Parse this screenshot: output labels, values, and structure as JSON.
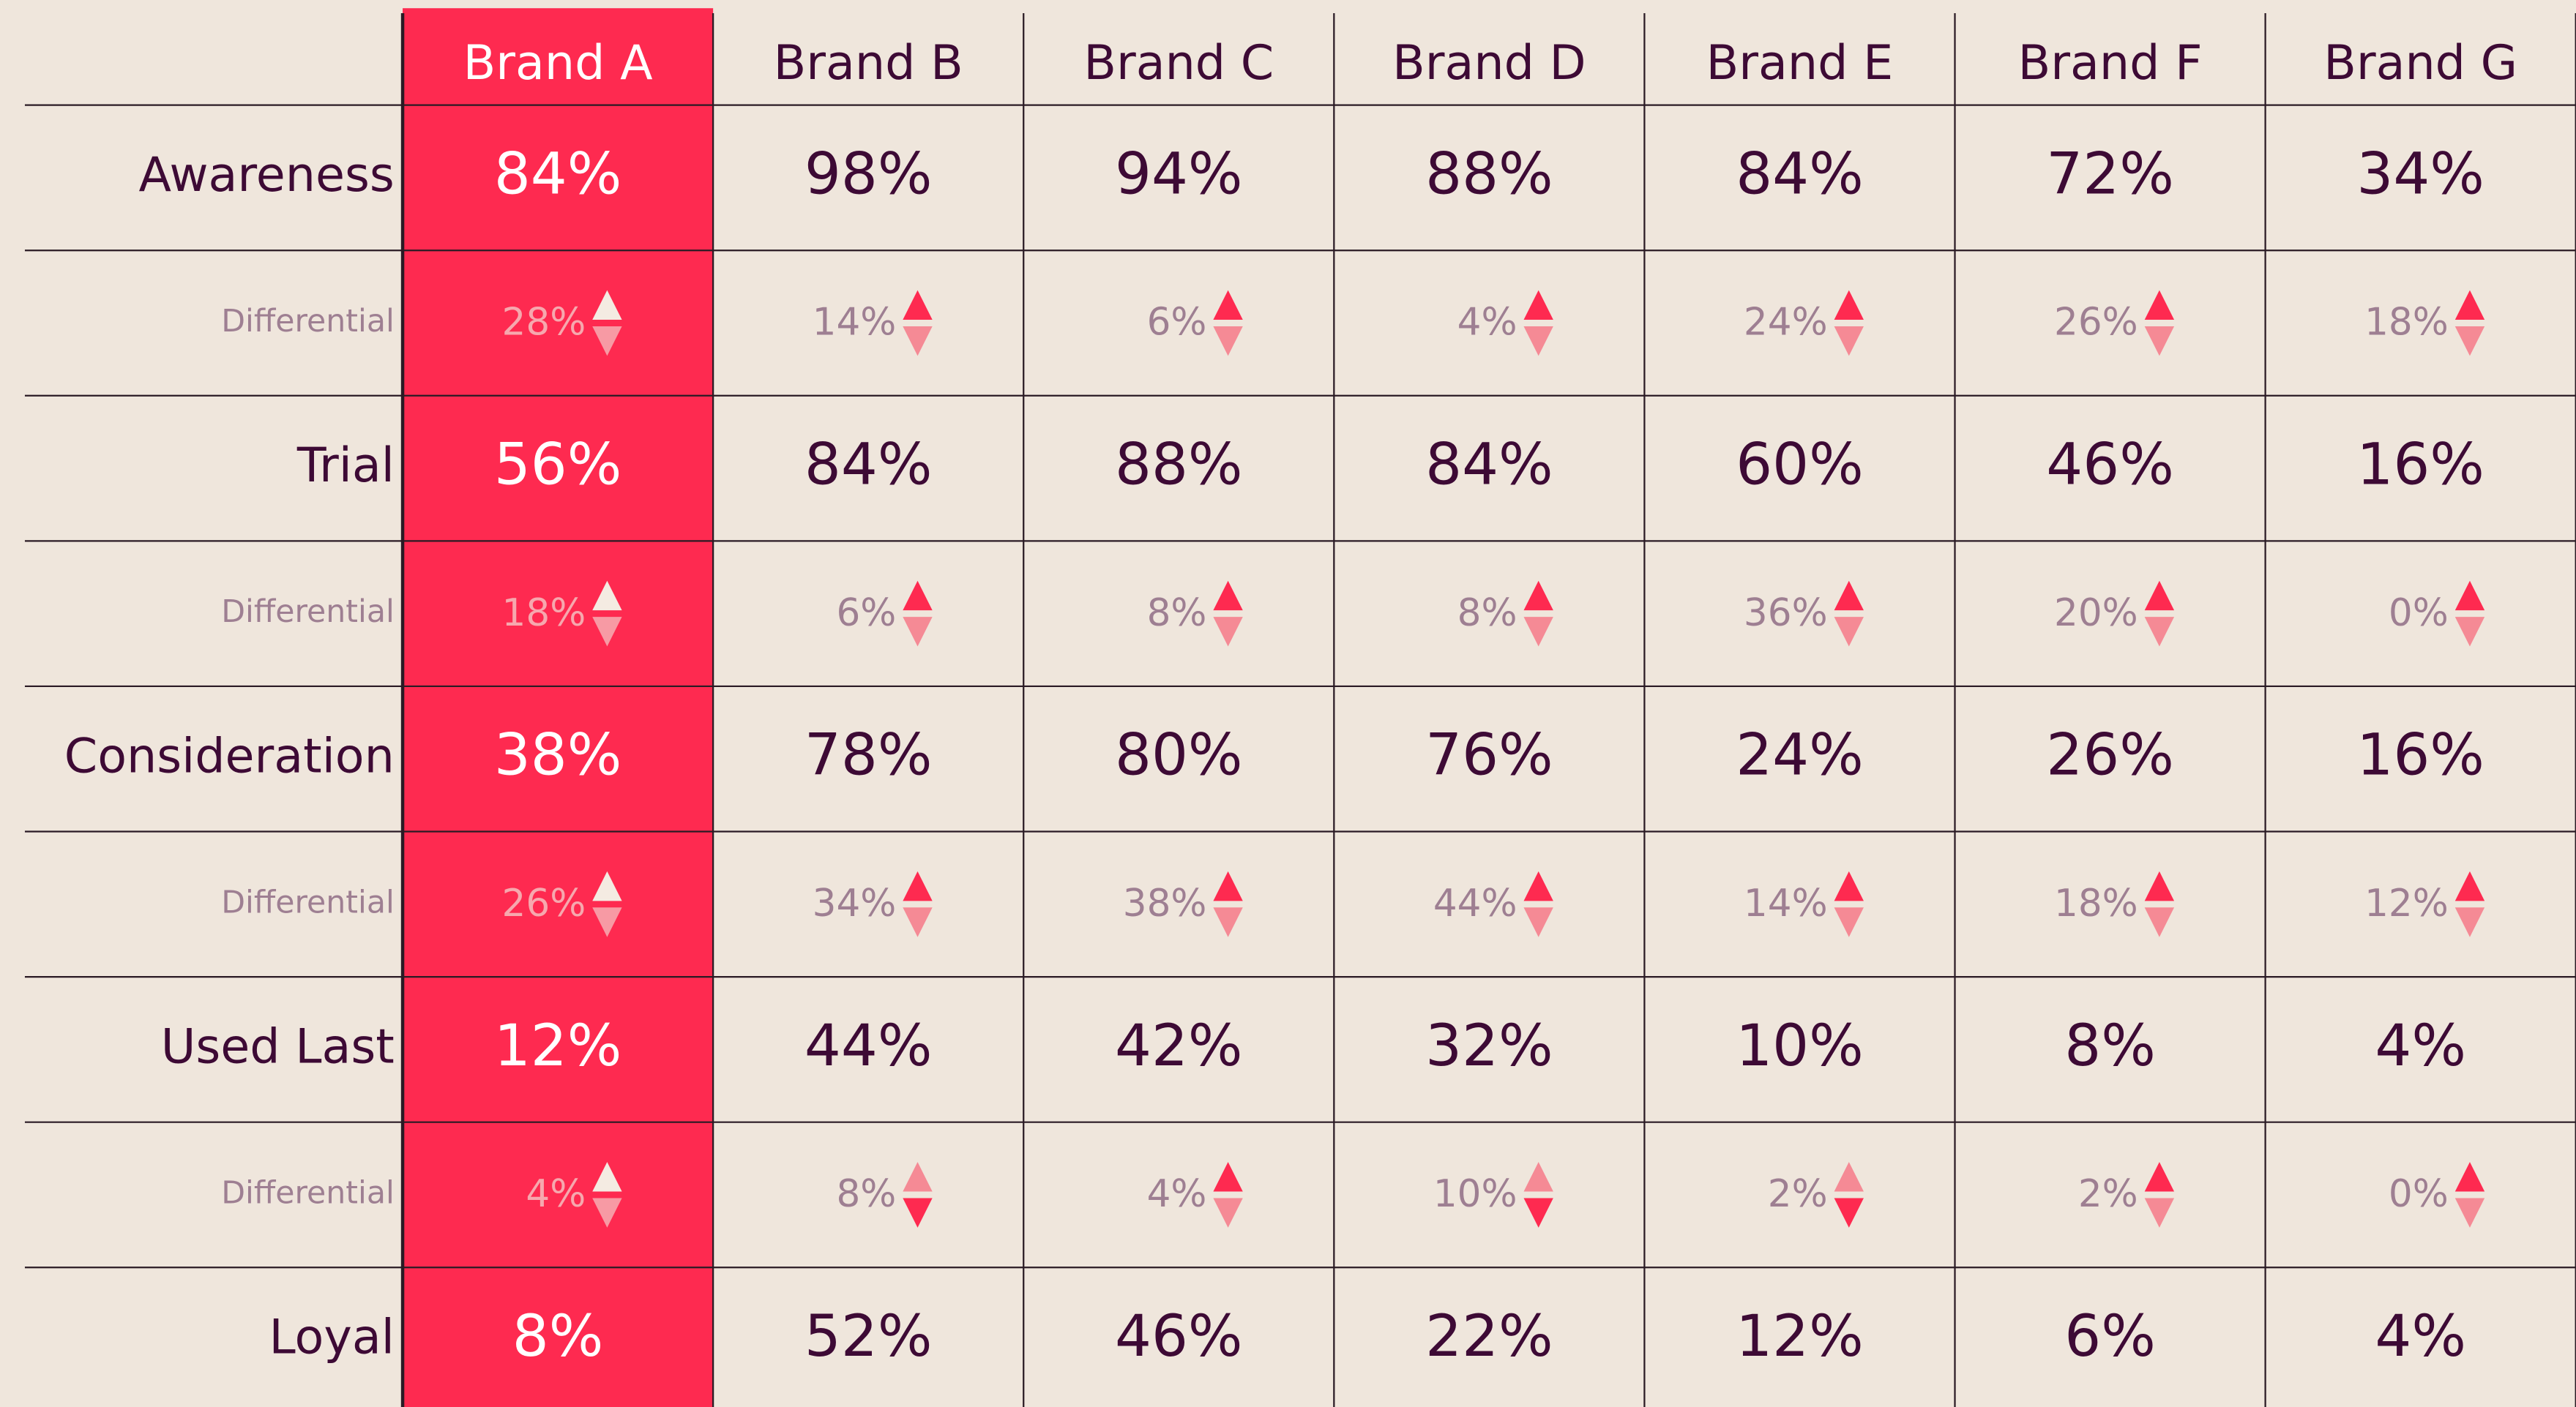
{
  "table": {
    "columns": [
      "Brand A",
      "Brand B",
      "Brand C",
      "Brand D",
      "Brand E",
      "Brand F",
      "Brand G"
    ],
    "highlight_column": 0,
    "rows": [
      {
        "label": "Awareness",
        "values": [
          "84%",
          "98%",
          "94%",
          "88%",
          "84%",
          "72%",
          "34%"
        ],
        "differential": {
          "label": "Differential",
          "values": [
            "28%",
            "14%",
            "6%",
            "4%",
            "24%",
            "26%",
            "18%"
          ],
          "directions": [
            "up",
            "up",
            "up",
            "up",
            "up",
            "up",
            "up"
          ]
        }
      },
      {
        "label": "Trial",
        "values": [
          "56%",
          "84%",
          "88%",
          "84%",
          "60%",
          "46%",
          "16%"
        ],
        "differential": {
          "label": "Differential",
          "values": [
            "18%",
            "6%",
            "8%",
            "8%",
            "36%",
            "20%",
            "0%"
          ],
          "directions": [
            "up",
            "up",
            "up",
            "up",
            "up",
            "up",
            "up"
          ]
        }
      },
      {
        "label": "Consideration",
        "values": [
          "38%",
          "78%",
          "80%",
          "76%",
          "24%",
          "26%",
          "16%"
        ],
        "differential": {
          "label": "Differential",
          "values": [
            "26%",
            "34%",
            "38%",
            "44%",
            "14%",
            "18%",
            "12%"
          ],
          "directions": [
            "up",
            "up",
            "up",
            "up",
            "up",
            "up",
            "up"
          ]
        }
      },
      {
        "label": "Used Last",
        "values": [
          "12%",
          "44%",
          "42%",
          "32%",
          "10%",
          "8%",
          "4%"
        ],
        "differential": {
          "label": "Differential",
          "values": [
            "4%",
            "8%",
            "4%",
            "10%",
            "2%",
            "2%",
            "0%"
          ],
          "directions": [
            "up",
            "down",
            "up",
            "down",
            "down",
            "up",
            "up"
          ]
        }
      },
      {
        "label": "Loyal",
        "values": [
          "8%",
          "52%",
          "46%",
          "22%",
          "12%",
          "6%",
          "4%"
        ]
      }
    ]
  }
}
